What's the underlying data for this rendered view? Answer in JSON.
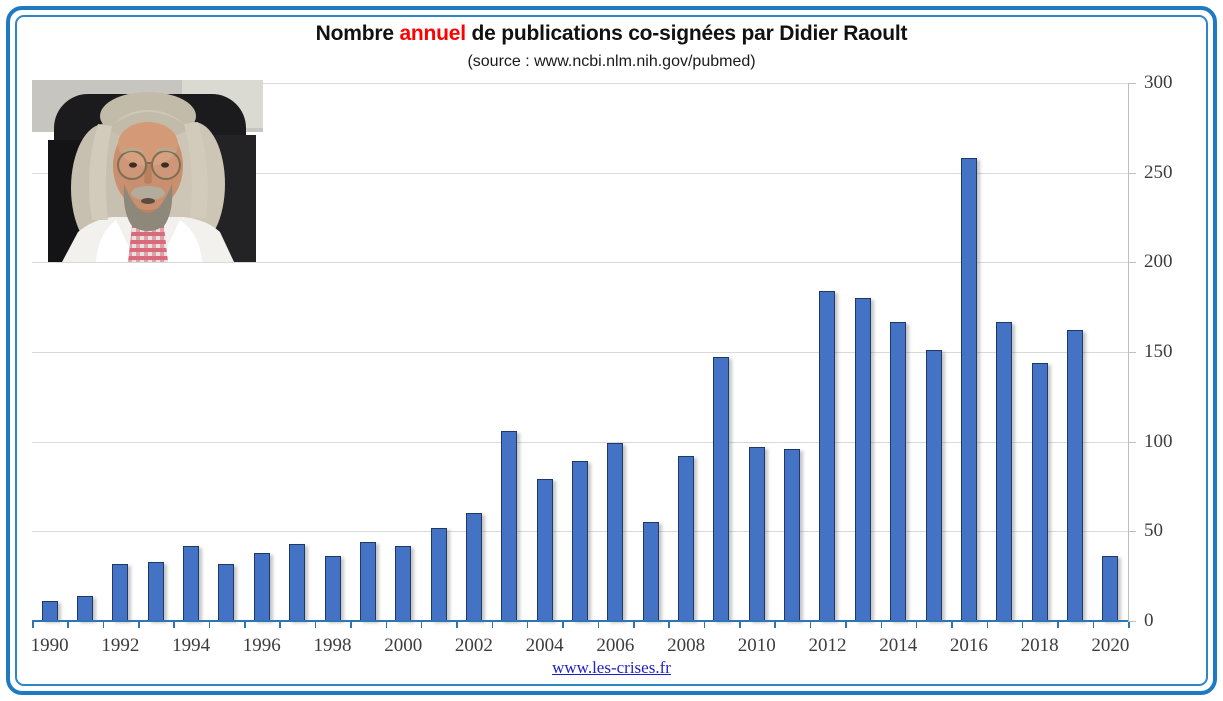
{
  "header": {
    "title_prefix": "Nombre ",
    "title_highlight": "annuel",
    "title_suffix": " de publications co-signées par Didier Raoult",
    "subtitle": "(source : www.ncbi.nlm.nih.gov/pubmed)",
    "highlight_color": "#FF0000"
  },
  "chart_data": {
    "type": "bar",
    "title": "Nombre annuel de publications co-signées par Didier Raoult",
    "subtitle": "(source : www.ncbi.nlm.nih.gov/pubmed)",
    "categories": [
      1990,
      1991,
      1992,
      1993,
      1994,
      1995,
      1996,
      1997,
      1998,
      1999,
      2000,
      2001,
      2002,
      2003,
      2004,
      2005,
      2006,
      2007,
      2008,
      2009,
      2010,
      2011,
      2012,
      2013,
      2014,
      2015,
      2016,
      2017,
      2018,
      2019,
      2020
    ],
    "values": [
      11,
      14,
      32,
      33,
      42,
      32,
      38,
      43,
      36,
      44,
      42,
      52,
      60,
      106,
      79,
      89,
      99,
      55,
      92,
      147,
      97,
      96,
      184,
      180,
      167,
      151,
      258,
      167,
      144,
      162,
      36
    ],
    "ylim": [
      0,
      300
    ],
    "ytick_step": 50,
    "ytick_labels": [
      "0",
      "50",
      "100",
      "150",
      "200",
      "250",
      "300"
    ],
    "xtick_label_every": 2,
    "grid": true,
    "legend": false,
    "y_axis_side": "right",
    "bar_color": "#4472C4",
    "bar_border_color": "#1F3864",
    "x_axis_color": "#2E75B6",
    "y_axis_color": "#BFBFBF",
    "gridline_color": "#D9D9D9"
  },
  "footer": {
    "link": "www.les-crises.fr",
    "link_color": "#1F1FC8"
  },
  "frame": {
    "border_color": "#1F7AC4"
  }
}
